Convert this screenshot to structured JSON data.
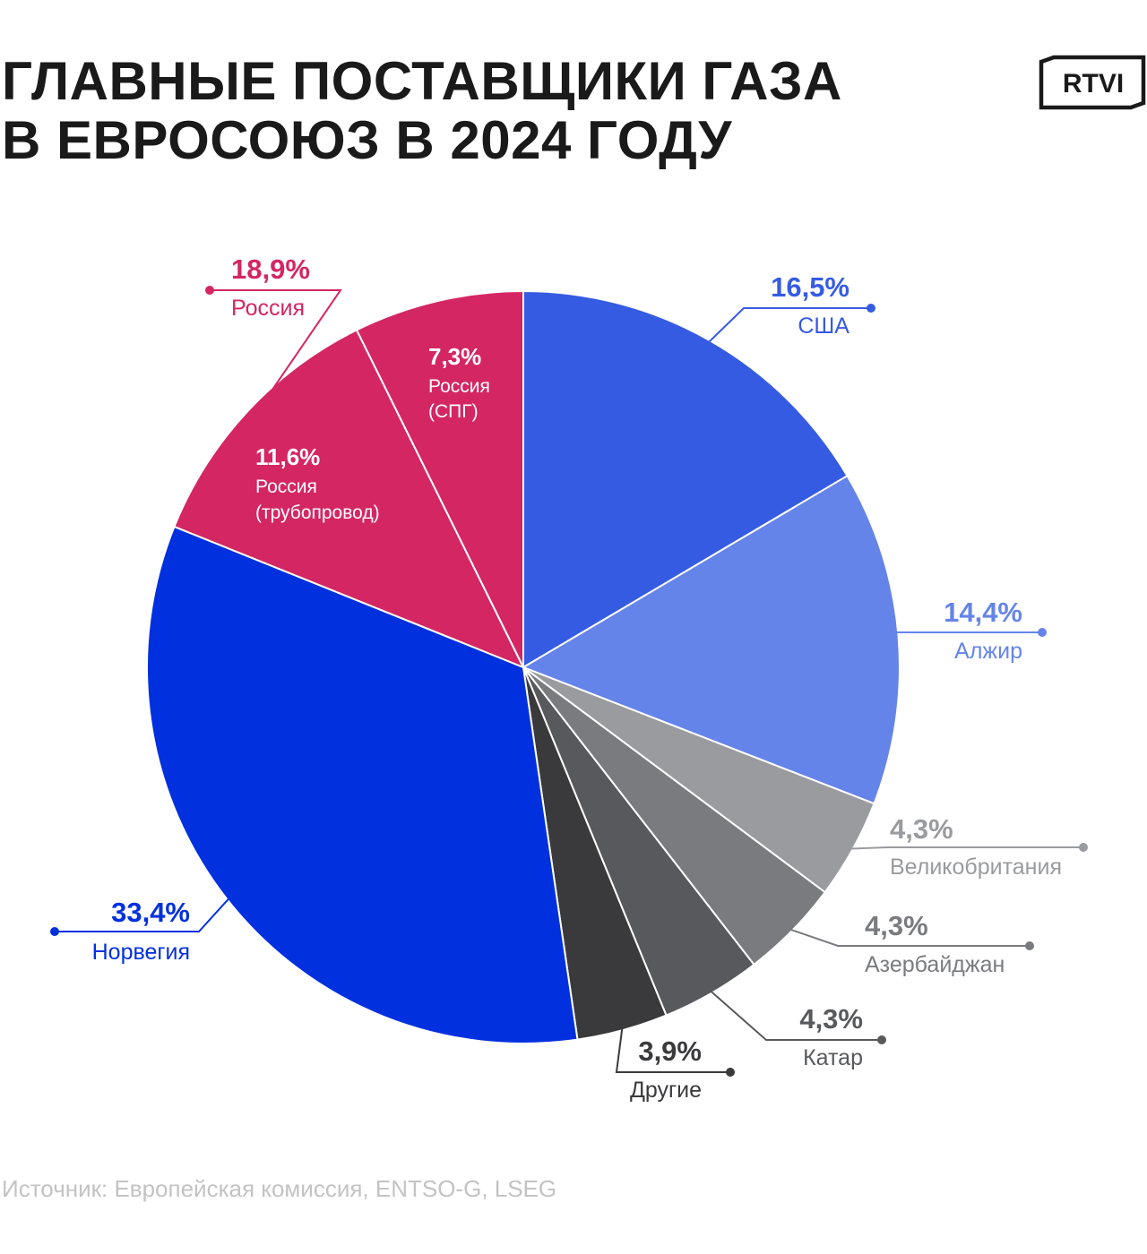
{
  "header": {
    "title_line1": "ГЛАВНЫЕ ПОСТАВЩИКИ ГАЗА",
    "title_line2": "В ЕВРОСОЮЗ В 2024 ГОДУ",
    "logo_text": "RTVI"
  },
  "footer": {
    "source": "Источник: Европейская комиссия, ENTSO-G, LSEG"
  },
  "chart_data": {
    "type": "pie",
    "unit": "%",
    "start_angle_deg": 0,
    "direction": "clockwise",
    "slices": [
      {
        "label": "США",
        "value": 16.5,
        "value_label": "16,5%",
        "color": "#365BE3",
        "label_color": "#365BE3"
      },
      {
        "label": "Алжир",
        "value": 14.4,
        "value_label": "14,4%",
        "color": "#6584EA",
        "label_color": "#6584EA"
      },
      {
        "label": "Великобритания",
        "value": 4.3,
        "value_label": "4,3%",
        "color": "#9A9B9E",
        "label_color": "#9A9B9E"
      },
      {
        "label": "Азербайджан",
        "value": 4.3,
        "value_label": "4,3%",
        "color": "#7A7B7E",
        "label_color": "#7A7B7E"
      },
      {
        "label": "Катар",
        "value": 4.3,
        "value_label": "4,3%",
        "color": "#58595C",
        "label_color": "#58595C"
      },
      {
        "label": "Другие",
        "value": 3.9,
        "value_label": "3,9%",
        "color": "#3A3A3C",
        "label_color": "#3A3A3C"
      },
      {
        "label": "Норвегия",
        "value": 33.4,
        "value_label": "33,4%",
        "color": "#0130DF",
        "label_color": "#0130DF"
      },
      {
        "label": "Россия (трубопровод)",
        "label_lines": [
          "Россия",
          "(трубопровод)"
        ],
        "value": 11.6,
        "value_label": "11,6%",
        "color": "#D42662",
        "label_color": "#FFFFFF"
      },
      {
        "label": "Россия (СПГ)",
        "label_lines": [
          "Россия",
          "(СПГ)"
        ],
        "value": 7.3,
        "value_label": "7,3%",
        "color": "#D42662",
        "label_color": "#FFFFFF"
      }
    ],
    "group_annotation": {
      "label": "Россия",
      "value": 18.9,
      "value_label": "18,9%",
      "color": "#D42662"
    }
  }
}
